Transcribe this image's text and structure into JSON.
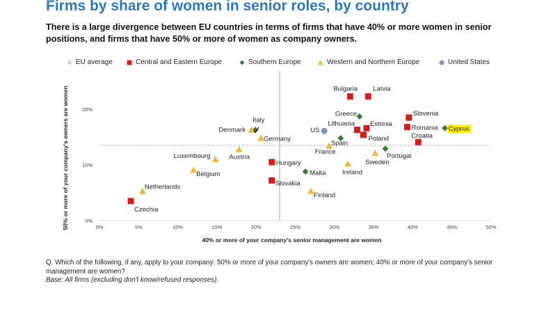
{
  "title": "Firms by share of women in senior roles, by country",
  "subtitle": "There is a large divergence between EU countries in terms of firms that have 40% or more women in senior positions, and firms that have 50% or more of women as company owners.",
  "legend": [
    {
      "label": "EU average",
      "marker": "plus",
      "color": "#a6a6a6"
    },
    {
      "label": "Central and Eastern Europe",
      "marker": "square",
      "color": "#d0201c"
    },
    {
      "label": "Southern Europe",
      "marker": "diamond",
      "color": "#3a7d3a"
    },
    {
      "label": "Western and Northern Europe",
      "marker": "triangle",
      "color": "#f5b63d"
    },
    {
      "label": "United States",
      "marker": "circle",
      "color": "#7f96bd"
    }
  ],
  "footer": {
    "question": "Q. Which of the following, if any, apply to your company: 50% or more of your company's owners are women; 40% or more of your company's senior management are women?",
    "base": "Base: All firms (excluding don't know/refused responses)."
  },
  "chart_data": {
    "type": "scatter",
    "xlabel": "40% or more of your company's senior management are women",
    "ylabel": "50% or more of your company's owners are women",
    "xlim": [
      0,
      50
    ],
    "ylim": [
      0,
      25
    ],
    "x_ticks": [
      "0%",
      "5%",
      "10%",
      "15%",
      "20%",
      "25%",
      "30%",
      "35%",
      "40%",
      "45%",
      "50%"
    ],
    "y_ticks": [
      "0%",
      "10%",
      "20%"
    ],
    "eu_average": {
      "x": 23,
      "y": 13.5
    },
    "highlight": "Cyprus",
    "groups": {
      "Central and Eastern Europe": {
        "marker": "square",
        "color": "#d0201c"
      },
      "Southern Europe": {
        "marker": "diamond",
        "color": "#3a7d3a"
      },
      "Western and Northern Europe": {
        "marker": "triangle",
        "color": "#f5b63d"
      },
      "United States": {
        "marker": "circle",
        "color": "#7f96bd"
      }
    },
    "points": [
      {
        "label": "Czechia",
        "group": "Central and Eastern Europe",
        "x": 4,
        "y": 3.5
      },
      {
        "label": "Slovakia",
        "group": "Central and Eastern Europe",
        "x": 22,
        "y": 7.2
      },
      {
        "label": "Hungary",
        "group": "Central and Eastern Europe",
        "x": 22,
        "y": 10.5
      },
      {
        "label": "Bulgaria",
        "group": "Central and Eastern Europe",
        "x": 32,
        "y": 22.3
      },
      {
        "label": "Latvia",
        "group": "Central and Eastern Europe",
        "x": 34.3,
        "y": 22.3
      },
      {
        "label": "Lithuania",
        "group": "Central and Eastern Europe",
        "x": 32.9,
        "y": 16.3
      },
      {
        "label": "Estonia",
        "group": "Central and Eastern Europe",
        "x": 34.1,
        "y": 16.6
      },
      {
        "label": "Poland",
        "group": "Central and Eastern Europe",
        "x": 33.7,
        "y": 15.4
      },
      {
        "label": "Slovenia",
        "group": "Central and Eastern Europe",
        "x": 39.5,
        "y": 18.5
      },
      {
        "label": "Romania",
        "group": "Central and Eastern Europe",
        "x": 39.3,
        "y": 16.8
      },
      {
        "label": "Croatia",
        "group": "Central and Eastern Europe",
        "x": 40.7,
        "y": 14.1
      },
      {
        "label": "Malta",
        "group": "Southern Europe",
        "x": 26.3,
        "y": 8.8
      },
      {
        "label": "Spain",
        "group": "Southern Europe",
        "x": 30.8,
        "y": 14.8
      },
      {
        "label": "Greece",
        "group": "Southern Europe",
        "x": 33.2,
        "y": 18.7
      },
      {
        "label": "Portugal",
        "group": "Southern Europe",
        "x": 36.5,
        "y": 12.9
      },
      {
        "label": "Cyprus",
        "group": "Southern Europe",
        "x": 44.1,
        "y": 16.6
      },
      {
        "label": "Italy",
        "group": "Southern Europe",
        "x": 19.9,
        "y": 16.3
      },
      {
        "label": "Netherlands",
        "group": "Western and Northern Europe",
        "x": 5.5,
        "y": 5.3
      },
      {
        "label": "Belgium",
        "group": "Western and Northern Europe",
        "x": 12,
        "y": 9.1
      },
      {
        "label": "Luxembourg",
        "group": "Western and Northern Europe",
        "x": 14.8,
        "y": 11
      },
      {
        "label": "Austria",
        "group": "Western and Northern Europe",
        "x": 17.8,
        "y": 12.8
      },
      {
        "label": "Denmark",
        "group": "Western and Northern Europe",
        "x": 19.4,
        "y": 16.3
      },
      {
        "label": "Germany",
        "group": "Western and Northern Europe",
        "x": 20.6,
        "y": 14.8
      },
      {
        "label": "Finland",
        "group": "Western and Northern Europe",
        "x": 27,
        "y": 5.3
      },
      {
        "label": "France",
        "group": "Western and Northern Europe",
        "x": 29.3,
        "y": 13.4
      },
      {
        "label": "Ireland",
        "group": "Western and Northern Europe",
        "x": 31.7,
        "y": 10.2
      },
      {
        "label": "Sweden",
        "group": "Western and Northern Europe",
        "x": 35.2,
        "y": 12.1
      },
      {
        "label": "US",
        "group": "United States",
        "x": 28.7,
        "y": 16.1
      }
    ]
  }
}
